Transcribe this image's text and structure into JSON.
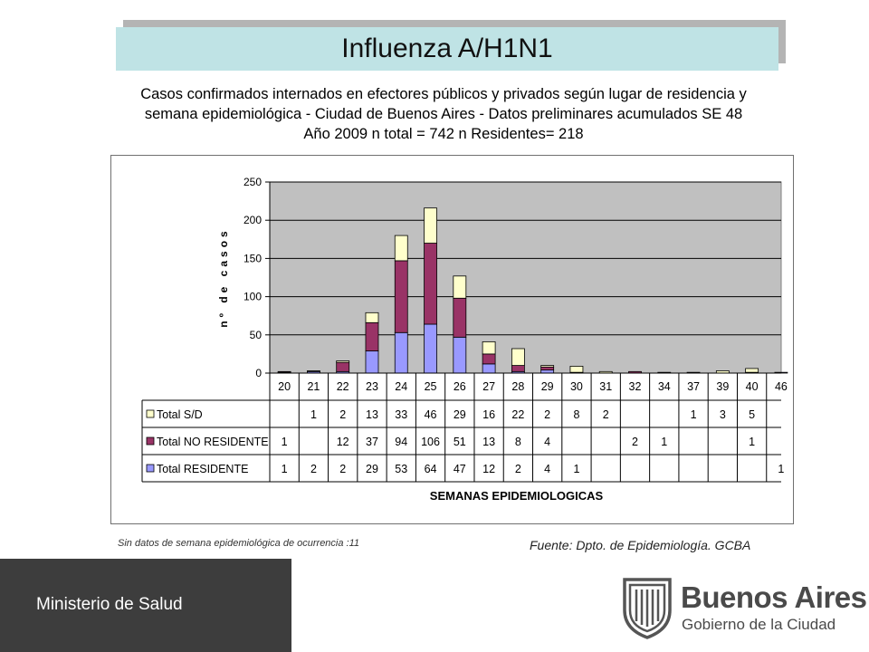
{
  "header": {
    "title": "Influenza A/H1N1",
    "subtitle_lines": [
      "Casos confirmados internados en efectores públicos y privados según lugar de residencia y",
      "semana epidemiológica - Ciudad de Buenos Aires - Datos preliminares acumulados SE 48",
      "Año 2009    n total = 742    n  Residentes= 218"
    ]
  },
  "chart_data": {
    "type": "bar",
    "stacked": true,
    "categories": [
      "20",
      "21",
      "22",
      "23",
      "24",
      "25",
      "26",
      "27",
      "28",
      "29",
      "30",
      "31",
      "32",
      "34",
      "37",
      "39",
      "40",
      "46"
    ],
    "series": [
      {
        "name": "Total RESIDENTE",
        "color": "#9999ff",
        "values": [
          1,
          2,
          2,
          29,
          53,
          64,
          47,
          12,
          2,
          4,
          1,
          null,
          null,
          null,
          null,
          null,
          null,
          1
        ],
        "display": [
          "1",
          "2",
          "2",
          "29",
          "53",
          "64",
          "47",
          "12",
          "2",
          "4",
          "1",
          "",
          "",
          "",
          "",
          "",
          "",
          "1"
        ]
      },
      {
        "name": "Total NO RESIDENTE",
        "color": "#993366",
        "values": [
          1,
          null,
          12,
          37,
          94,
          106,
          51,
          13,
          8,
          4,
          null,
          null,
          2,
          1,
          null,
          null,
          1,
          null
        ],
        "display": [
          "1",
          "",
          "12",
          "37",
          "94",
          "106",
          "51",
          "13",
          "8",
          "4",
          "",
          "",
          "2",
          "1",
          "",
          "",
          "1",
          ""
        ]
      },
      {
        "name": "Total S/D",
        "color": "#ffffcc",
        "values": [
          null,
          1,
          2,
          13,
          33,
          46,
          29,
          16,
          22,
          2,
          8,
          2,
          null,
          null,
          1,
          3,
          5,
          null
        ],
        "display": [
          "",
          "1",
          "2",
          "13",
          "33",
          "46",
          "29",
          "16",
          "22",
          "2",
          "8",
          "2",
          "",
          "",
          "1",
          "3",
          "5",
          ""
        ]
      }
    ],
    "table_order": [
      "Total S/D",
      "Total NO RESIDENTE",
      "Total RESIDENTE"
    ],
    "ylabel": "nº de casos",
    "xlabel": "SEMANAS EPIDEMIOLOGICAS",
    "ylim": [
      0,
      250
    ],
    "yticks": [
      0,
      50,
      100,
      150,
      200,
      250
    ],
    "grid": true,
    "legend": "data table below chart",
    "plot_background": "#c0c0c0"
  },
  "notes": {
    "footnote": "Sin datos de semana epidemiológica de ocurrencia :11",
    "source": "Fuente: Dpto. de Epidemiología. GCBA"
  },
  "footer": {
    "ministry": "Ministerio de Salud",
    "city": "Buenos Aires",
    "city_sub": "Gobierno de la Ciudad",
    "logo_icon": "city-seal-icon"
  }
}
